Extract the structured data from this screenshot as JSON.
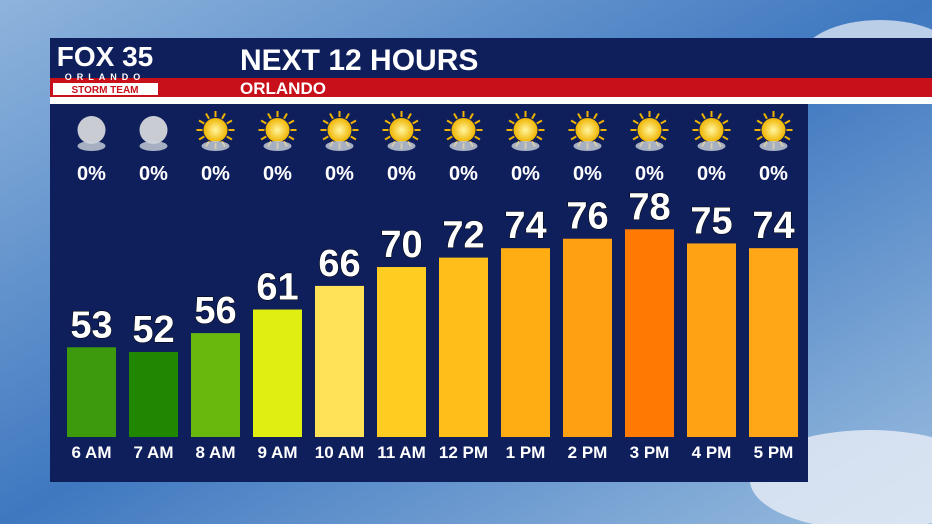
{
  "logo": {
    "brand": "FOX 35",
    "city": "ORLANDO",
    "team": "STORM TEAM"
  },
  "chart_data": {
    "type": "bar",
    "title": "NEXT 12 HOURS",
    "subtitle": "ORLANDO",
    "categories": [
      "6 AM",
      "7 AM",
      "8 AM",
      "9 AM",
      "10 AM",
      "11 AM",
      "12 PM",
      "1 PM",
      "2 PM",
      "3 PM",
      "4 PM",
      "5 PM"
    ],
    "values": [
      53,
      52,
      56,
      61,
      66,
      70,
      72,
      74,
      76,
      78,
      75,
      74
    ],
    "colors": [
      "#3c9a0c",
      "#1f8800",
      "#68b80e",
      "#e0ee12",
      "#ffe257",
      "#ffcd22",
      "#ffbe1a",
      "#ffad12",
      "#ff9f12",
      "#ff7a02",
      "#ffa214",
      "#ffa716"
    ],
    "precipitation": {
      "values": [
        0,
        0,
        0,
        0,
        0,
        0,
        0,
        0,
        0,
        0,
        0,
        0
      ],
      "value_labels": [
        "0%",
        "0%",
        "0%",
        "0%",
        "0%",
        "0%",
        "0%",
        "0%",
        "0%",
        "0%",
        "0%",
        "0%"
      ]
    }
  }
}
